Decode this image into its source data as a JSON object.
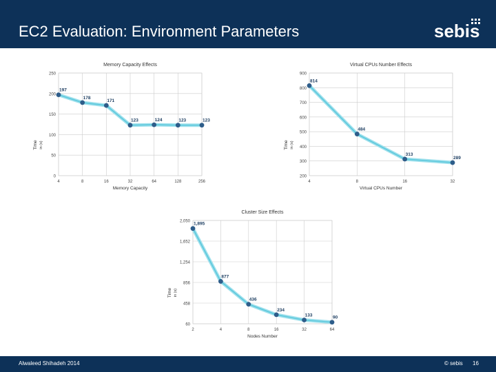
{
  "slide": {
    "title": "EC2 Evaluation: Environment Parameters",
    "logo": "sebis",
    "author": "Alwaleed Shihadeh 2014",
    "copyright": "© sebis",
    "page_number": "16"
  },
  "colors": {
    "header_bg": "#0d3158",
    "line_halo": "#9ee0ec",
    "line": "#5cc8dc",
    "point": "#2e5d8a",
    "grid": "#cccccc"
  },
  "chart_data": [
    {
      "type": "line",
      "title": "Memory Capacity Effects",
      "xlabel": "Memory Capacity",
      "ylabel": "Time",
      "ylabel_sub": "in (s)",
      "categories": [
        "4",
        "8",
        "16",
        "32",
        "64",
        "128",
        "256"
      ],
      "values": [
        197,
        178,
        171,
        123,
        124,
        123,
        123
      ],
      "value_labels": [
        "197",
        "178",
        "171",
        "123",
        "124",
        "123",
        "123"
      ],
      "ylim": [
        0,
        250
      ],
      "yticks": [
        0,
        50,
        100,
        150,
        200,
        250
      ],
      "ytick_labels": [
        "0",
        "50",
        "100",
        "150",
        "200",
        "250"
      ],
      "grid": true
    },
    {
      "type": "line",
      "title": "Virtual CPUs Number Effects",
      "xlabel": "Virtual CPUs Number",
      "ylabel": "Time",
      "ylabel_sub": "in (s)",
      "categories": [
        "4",
        "8",
        "16",
        "32"
      ],
      "values": [
        814,
        484,
        313,
        289
      ],
      "value_labels": [
        "814",
        "484",
        "313",
        "289"
      ],
      "ylim": [
        200,
        900
      ],
      "yticks": [
        200,
        300,
        400,
        500,
        600,
        700,
        800,
        900
      ],
      "ytick_labels": [
        "200",
        "300",
        "400",
        "500",
        "600",
        "700",
        "800",
        "900"
      ],
      "grid": true
    },
    {
      "type": "line",
      "title": "Cluster Size Effects",
      "xlabel": "Nodes Number",
      "ylabel": "Time",
      "ylabel_sub": "in (s)",
      "categories": [
        "2",
        "4",
        "8",
        "16",
        "32",
        "64"
      ],
      "values": [
        1895,
        877,
        436,
        234,
        133,
        90
      ],
      "value_labels": [
        "1,895",
        "877",
        "436",
        "234",
        "133",
        "90"
      ],
      "ylim": [
        60,
        2050
      ],
      "yticks": [
        60,
        458,
        856,
        1254,
        1652,
        2050
      ],
      "ytick_labels": [
        "60",
        "458",
        "856",
        "1,254",
        "1,652",
        "2,050"
      ],
      "grid": true
    }
  ]
}
